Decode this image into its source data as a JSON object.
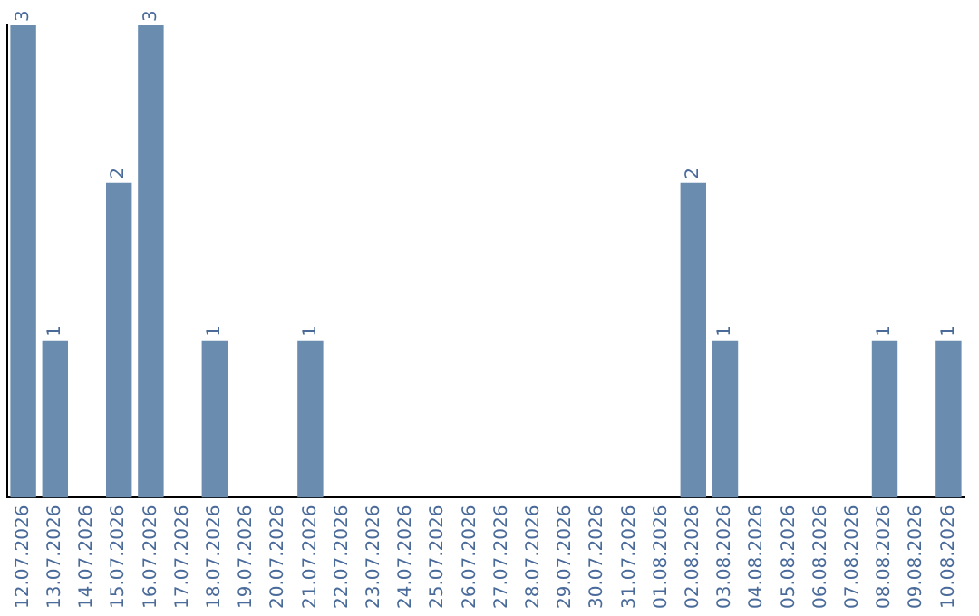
{
  "chart_data": {
    "type": "bar",
    "categories": [
      "12.07.2026",
      "13.07.2026",
      "14.07.2026",
      "15.07.2026",
      "16.07.2026",
      "17.07.2026",
      "18.07.2026",
      "19.07.2026",
      "20.07.2026",
      "21.07.2026",
      "22.07.2026",
      "23.07.2026",
      "24.07.2026",
      "25.07.2026",
      "26.07.2026",
      "27.07.2026",
      "28.07.2026",
      "29.07.2026",
      "30.07.2026",
      "31.07.2026",
      "01.08.2026",
      "02.08.2026",
      "03.08.2026",
      "04.08.2026",
      "05.08.2026",
      "06.08.2026",
      "07.08.2026",
      "08.08.2026",
      "09.08.2026",
      "10.08.2026"
    ],
    "values": [
      3,
      1,
      0,
      2,
      3,
      0,
      1,
      0,
      0,
      1,
      0,
      0,
      0,
      0,
      0,
      0,
      0,
      0,
      0,
      0,
      0,
      2,
      1,
      0,
      0,
      0,
      0,
      1,
      0,
      1
    ],
    "value_labels": [
      "3",
      "1",
      null,
      "2",
      "3",
      null,
      "1",
      null,
      null,
      "1",
      null,
      null,
      null,
      null,
      null,
      null,
      null,
      null,
      null,
      null,
      null,
      "2",
      "1",
      null,
      null,
      null,
      null,
      "1",
      null,
      "1"
    ],
    "color": "#6a8caf",
    "grid": false,
    "legend": false,
    "tick_labels": "x"
  }
}
